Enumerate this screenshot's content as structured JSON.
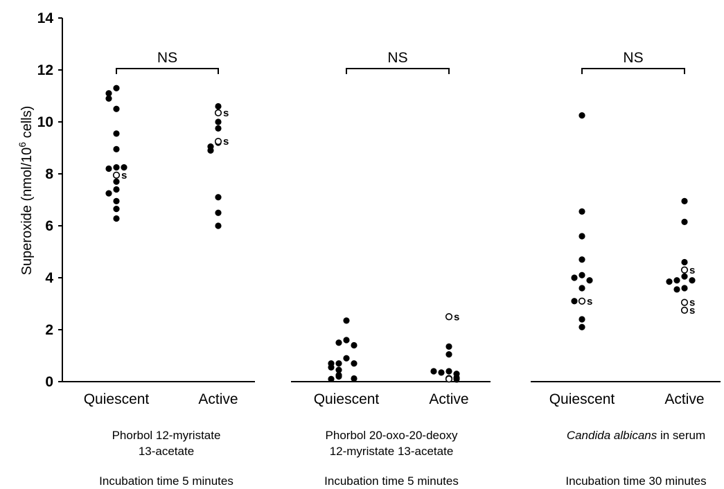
{
  "chart_data": {
    "type": "scatter",
    "ylabel": "Superoxide (nmol/10",
    "ylabel_sup": "6",
    "ylabel_tail": " cells)",
    "ylim": [
      0,
      14
    ],
    "yticks": [
      "0",
      "2",
      "4",
      "6",
      "8",
      "10",
      "12",
      "14"
    ],
    "grid": false,
    "legend": "none",
    "panels": [
      {
        "stimulus_lines": [
          "Phorbol 12-myristate",
          "13-acetate"
        ],
        "stimulus_italic": "",
        "stimulus_suffix": "",
        "incubation": "Incubation time 5 minutes",
        "significance": "NS",
        "groups": [
          {
            "category": "Quiescent",
            "filled": [
              11.3,
              11.1,
              10.9,
              10.5,
              9.55,
              8.95,
              8.25,
              8.2,
              8.25,
              7.7,
              7.4,
              7.25,
              6.95,
              6.65,
              6.28
            ],
            "open_s": [
              7.95
            ]
          },
          {
            "category": "Active",
            "filled": [
              10.6,
              10.0,
              9.75,
              9.2,
              9.05,
              8.9,
              7.1,
              6.5,
              6.0
            ],
            "open_s": [
              10.35,
              9.25
            ]
          }
        ]
      },
      {
        "stimulus_lines": [
          "Phorbol  20-oxo-20-deoxy",
          "12-myristate 13-acetate"
        ],
        "stimulus_italic": "",
        "stimulus_suffix": "",
        "incubation": "Incubation  time 5 minutes",
        "significance": "NS",
        "groups": [
          {
            "category": "Quiescent",
            "filled": [
              2.35,
              1.6,
              1.5,
              1.4,
              0.9,
              0.7,
              0.7,
              0.7,
              0.55,
              0.45,
              0.25,
              0.2,
              0.12,
              0.1
            ],
            "open_s": []
          },
          {
            "category": "Active",
            "filled": [
              1.35,
              1.05,
              0.4,
              0.35,
              0.3,
              0.4,
              0.15,
              0.1
            ],
            "open_s": [
              2.5,
              0.12,
              0.1
            ]
          }
        ]
      },
      {
        "stimulus_lines": [],
        "stimulus_italic": "Candida albicans",
        "stimulus_suffix": " in serum",
        "incubation": "Incubation time 30 minutes",
        "significance": "NS",
        "groups": [
          {
            "category": "Quiescent",
            "filled": [
              10.25,
              6.55,
              5.6,
              4.7,
              4.1,
              4.0,
              3.9,
              3.6,
              3.1,
              3.1,
              2.4,
              2.1
            ],
            "open_s": [
              3.1
            ]
          },
          {
            "category": "Active",
            "filled": [
              6.95,
              6.15,
              4.6,
              4.05,
              3.9,
              3.9,
              3.85,
              3.6,
              3.55
            ],
            "open_s": [
              4.3,
              3.05,
              2.75
            ]
          }
        ]
      }
    ],
    "marker_label": "s"
  }
}
